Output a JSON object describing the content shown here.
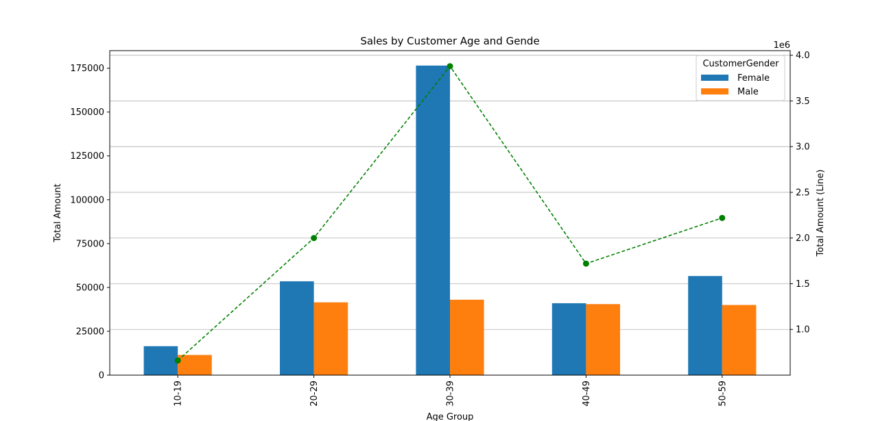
{
  "chart_data": {
    "type": "bar",
    "title": "Sales by Customer Age and Gende",
    "xlabel": "Age Group",
    "ylabel": "Total Amount",
    "y2label": "Total Amount (Line)",
    "y2_offset_text": "1e6",
    "categories": [
      "10-19",
      "20-29",
      "30-39",
      "40-49",
      "50-59"
    ],
    "ylim": [
      0,
      185000
    ],
    "yticks": [
      0,
      25000,
      50000,
      75000,
      100000,
      125000,
      150000,
      175000
    ],
    "y2lim": [
      0.5,
      4.05
    ],
    "y2ticks": [
      1.0,
      1.5,
      2.0,
      2.5,
      3.0,
      3.5,
      4.0
    ],
    "y2ticklabels": [
      "1.0",
      "1.5",
      "2.0",
      "2.5",
      "3.0",
      "3.5",
      "4.0"
    ],
    "legend_title": "CustomerGender",
    "legend_position": "top-right",
    "grid": "y (secondary axis)",
    "series": [
      {
        "name": "Female",
        "type": "bar",
        "axis": "left",
        "color": "#1f77b4",
        "values": [
          16500,
          53500,
          176500,
          41000,
          56500
        ]
      },
      {
        "name": "Male",
        "type": "bar",
        "axis": "left",
        "color": "#ff7f0e",
        "values": [
          11500,
          41500,
          43000,
          40500,
          40000
        ]
      },
      {
        "type": "line",
        "axis": "right",
        "style": "dashed",
        "marker": "circle",
        "color": "#008000",
        "values": [
          0.66,
          2.0,
          3.88,
          1.72,
          2.22
        ]
      }
    ]
  }
}
